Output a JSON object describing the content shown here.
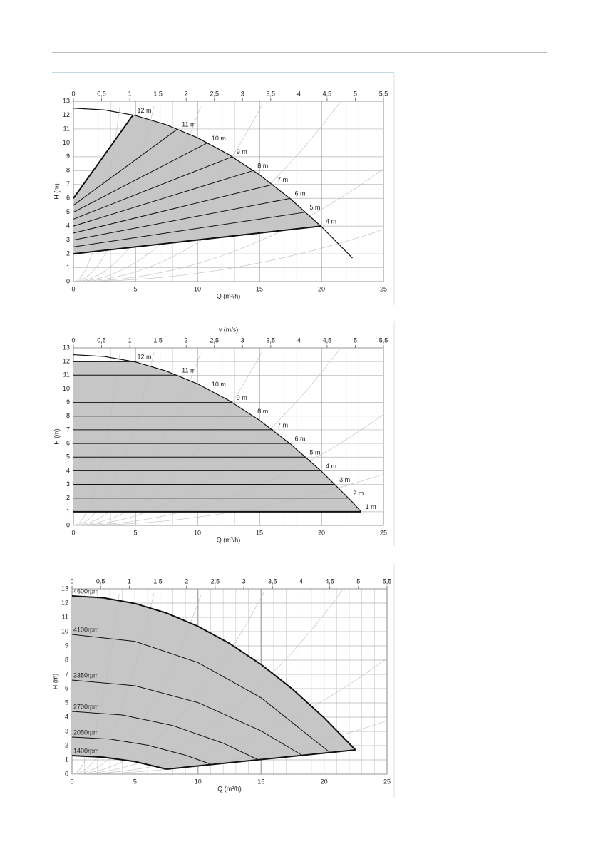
{
  "chart_data": [
    {
      "type": "line",
      "xlabel": "Q (m³/h)",
      "ylabel": "H (m)",
      "xlim": [
        0,
        25
      ],
      "xticks": [
        0,
        5,
        10,
        15,
        20,
        25
      ],
      "ylim": [
        0,
        13
      ],
      "yticks": [
        0,
        1,
        2,
        3,
        4,
        5,
        6,
        7,
        8,
        9,
        10,
        11,
        12,
        13
      ],
      "x2lim": [
        0,
        5.5
      ],
      "x2ticks": [
        0,
        {
          "value": 0.5,
          "label": "0,5"
        },
        1,
        {
          "value": 1.5,
          "label": "1,5"
        },
        2,
        {
          "value": 2.5,
          "label": "2,5"
        },
        3,
        {
          "value": 3.5,
          "label": "3,5"
        },
        4,
        {
          "value": 4.5,
          "label": "4,5"
        },
        5,
        {
          "value": 5.5,
          "label": "5,5"
        }
      ],
      "grid": true,
      "fill_color": "#c6c6c6",
      "series": [
        {
          "color": "#111111",
          "linewidth": 1.2,
          "x": [
            0,
            2.5,
            5,
            7.5,
            10,
            12.5,
            15,
            17.5,
            20,
            22.5
          ],
          "values": [
            12.5,
            12.37,
            11.97,
            11.3,
            10.37,
            9.17,
            7.7,
            5.96,
            3.96,
            1.7
          ]
        },
        {
          "name": "12 m",
          "color": "#111111",
          "linewidth": 2,
          "x": [
            0,
            4.8
          ],
          "values": [
            6,
            12
          ]
        },
        {
          "name": "11 m",
          "color": "#111111",
          "linewidth": 1,
          "x": [
            0,
            8.4
          ],
          "values": [
            5.5,
            11
          ]
        },
        {
          "name": "10 m",
          "color": "#111111",
          "linewidth": 1,
          "x": [
            0,
            10.8
          ],
          "values": [
            5,
            10
          ]
        },
        {
          "name": "9 m",
          "color": "#111111",
          "linewidth": 1,
          "x": [
            0,
            12.8
          ],
          "values": [
            4.5,
            9
          ]
        },
        {
          "name": "8 m",
          "color": "#111111",
          "linewidth": 1,
          "x": [
            0,
            14.5
          ],
          "values": [
            4,
            8
          ]
        },
        {
          "name": "7 m",
          "color": "#111111",
          "linewidth": 1,
          "x": [
            0,
            16.1
          ],
          "values": [
            3.5,
            7
          ]
        },
        {
          "name": "6 m",
          "color": "#111111",
          "linewidth": 1,
          "x": [
            0,
            17.5
          ],
          "values": [
            3,
            6
          ]
        },
        {
          "name": "5 m",
          "color": "#111111",
          "linewidth": 1,
          "x": [
            0,
            18.7
          ],
          "values": [
            2.5,
            5
          ]
        },
        {
          "name": "4 m",
          "color": "#111111",
          "linewidth": 2,
          "x": [
            0,
            20
          ],
          "values": [
            2,
            4
          ]
        }
      ]
    },
    {
      "type": "line",
      "xlabel": "Q (m³/h)",
      "ylabel": "H (m)",
      "x2label": "v (m/s)",
      "xlim": [
        0,
        25
      ],
      "xticks": [
        0,
        5,
        10,
        15,
        20,
        25
      ],
      "ylim": [
        0,
        13
      ],
      "yticks": [
        0,
        1,
        2,
        3,
        4,
        5,
        6,
        7,
        8,
        9,
        10,
        11,
        12,
        13
      ],
      "x2lim": [
        0,
        5.5
      ],
      "x2ticks": [
        0,
        {
          "value": 0.5,
          "label": "0,5"
        },
        1,
        {
          "value": 1.5,
          "label": "1,5"
        },
        2,
        {
          "value": 2.5,
          "label": "2,5"
        },
        3,
        {
          "value": 3.5,
          "label": "3,5"
        },
        4,
        {
          "value": 4.5,
          "label": "4,5"
        },
        5,
        {
          "value": 5.5,
          "label": "5,5"
        }
      ],
      "grid": true,
      "fill_color": "#c6c6c6",
      "series": [
        {
          "color": "#111111",
          "linewidth": 1.2,
          "x": [
            0,
            2.5,
            5,
            7.5,
            10,
            12.5,
            15,
            17.5,
            20,
            22.5,
            23.2
          ],
          "values": [
            12.5,
            12.37,
            11.97,
            11.3,
            10.37,
            9.17,
            7.7,
            5.96,
            3.96,
            1.7,
            1
          ]
        },
        {
          "name": "12 m",
          "color": "#111111",
          "linewidth": 1.5,
          "x": [
            0,
            4.8
          ],
          "values": [
            12,
            12
          ]
        },
        {
          "name": "11 m",
          "color": "#111111",
          "linewidth": 1,
          "x": [
            0,
            8.4
          ],
          "values": [
            11,
            11
          ]
        },
        {
          "name": "10 m",
          "color": "#111111",
          "linewidth": 1,
          "x": [
            0,
            10.8
          ],
          "values": [
            10,
            10
          ]
        },
        {
          "name": "9 m",
          "color": "#111111",
          "linewidth": 1,
          "x": [
            0,
            12.8
          ],
          "values": [
            9,
            9
          ]
        },
        {
          "name": "8 m",
          "color": "#111111",
          "linewidth": 1,
          "x": [
            0,
            14.5
          ],
          "values": [
            8,
            8
          ]
        },
        {
          "name": "7 m",
          "color": "#111111",
          "linewidth": 1,
          "x": [
            0,
            16.1
          ],
          "values": [
            7,
            7
          ]
        },
        {
          "name": "6 m",
          "color": "#111111",
          "linewidth": 1,
          "x": [
            0,
            17.5
          ],
          "values": [
            6,
            6
          ]
        },
        {
          "name": "5 m",
          "color": "#111111",
          "linewidth": 1,
          "x": [
            0,
            18.7
          ],
          "values": [
            5,
            5
          ]
        },
        {
          "name": "4 m",
          "color": "#111111",
          "linewidth": 1,
          "x": [
            0,
            20
          ],
          "values": [
            4,
            4
          ]
        },
        {
          "name": "3 m",
          "color": "#111111",
          "linewidth": 1,
          "x": [
            0,
            21.1
          ],
          "values": [
            3,
            3
          ]
        },
        {
          "name": "2 m",
          "color": "#111111",
          "linewidth": 1,
          "x": [
            0,
            22.2
          ],
          "values": [
            2,
            2
          ]
        },
        {
          "name": "1 m",
          "color": "#111111",
          "linewidth": 2,
          "x": [
            0,
            23.2
          ],
          "values": [
            1,
            1
          ]
        }
      ]
    },
    {
      "type": "line",
      "xlabel": "Q (m³/h)",
      "ylabel": "H (m)",
      "xlim": [
        0,
        25
      ],
      "xticks": [
        0,
        5,
        10,
        15,
        20,
        25
      ],
      "ylim": [
        0,
        13
      ],
      "yticks": [
        0,
        1,
        2,
        3,
        4,
        5,
        6,
        7,
        8,
        9,
        10,
        11,
        12,
        13
      ],
      "x2lim": [
        0,
        5.5
      ],
      "x2ticks": [
        0,
        {
          "value": 0.5,
          "label": "0,5"
        },
        1,
        {
          "value": 1.5,
          "label": "1,5"
        },
        2,
        {
          "value": 2.5,
          "label": "2,5"
        },
        3,
        {
          "value": 3.5,
          "label": "3,5"
        },
        4,
        {
          "value": 4.5,
          "label": "4,5"
        },
        5,
        {
          "value": 5.5,
          "label": "5,5"
        }
      ],
      "grid": true,
      "fill_color": "#c6c6c6",
      "series": [
        {
          "name": "4600rpm",
          "color": "#111111",
          "linewidth": 2,
          "x": [
            0,
            2.5,
            5,
            7.5,
            10,
            12.5,
            15,
            17.5,
            20,
            22.5
          ],
          "values": [
            12.5,
            12.37,
            11.97,
            11.3,
            10.37,
            9.17,
            7.7,
            5.96,
            3.96,
            1.7
          ]
        },
        {
          "name": "4100rpm",
          "color": "#111111",
          "linewidth": 1,
          "x": [
            0,
            5,
            10,
            15,
            20.5
          ],
          "values": [
            9.8,
            9.31,
            7.83,
            5.36,
            1.5
          ]
        },
        {
          "name": "3350rpm",
          "color": "#111111",
          "linewidth": 1,
          "x": [
            0,
            5,
            10,
            15,
            18.3
          ],
          "values": [
            6.6,
            6.2,
            5.02,
            3.04,
            1.3
          ]
        },
        {
          "name": "2700rpm",
          "color": "#111111",
          "linewidth": 1,
          "x": [
            0,
            4,
            8,
            12,
            14.8
          ],
          "values": [
            4.4,
            4.15,
            3.41,
            2.17,
            1
          ]
        },
        {
          "name": "2050rpm",
          "color": "#111111",
          "linewidth": 1,
          "x": [
            0,
            3,
            6,
            9,
            11
          ],
          "values": [
            2.6,
            2.46,
            2.03,
            1.33,
            0.7
          ]
        },
        {
          "name": "1400rpm",
          "color": "#111111",
          "linewidth": 2,
          "x": [
            0,
            2.5,
            5,
            7.5
          ],
          "values": [
            1.3,
            1.19,
            0.88,
            0.35
          ]
        },
        {
          "color": "#111111",
          "linewidth": 2,
          "x": [
            7.5,
            22.5
          ],
          "values": [
            0.35,
            1.7
          ]
        }
      ]
    }
  ]
}
